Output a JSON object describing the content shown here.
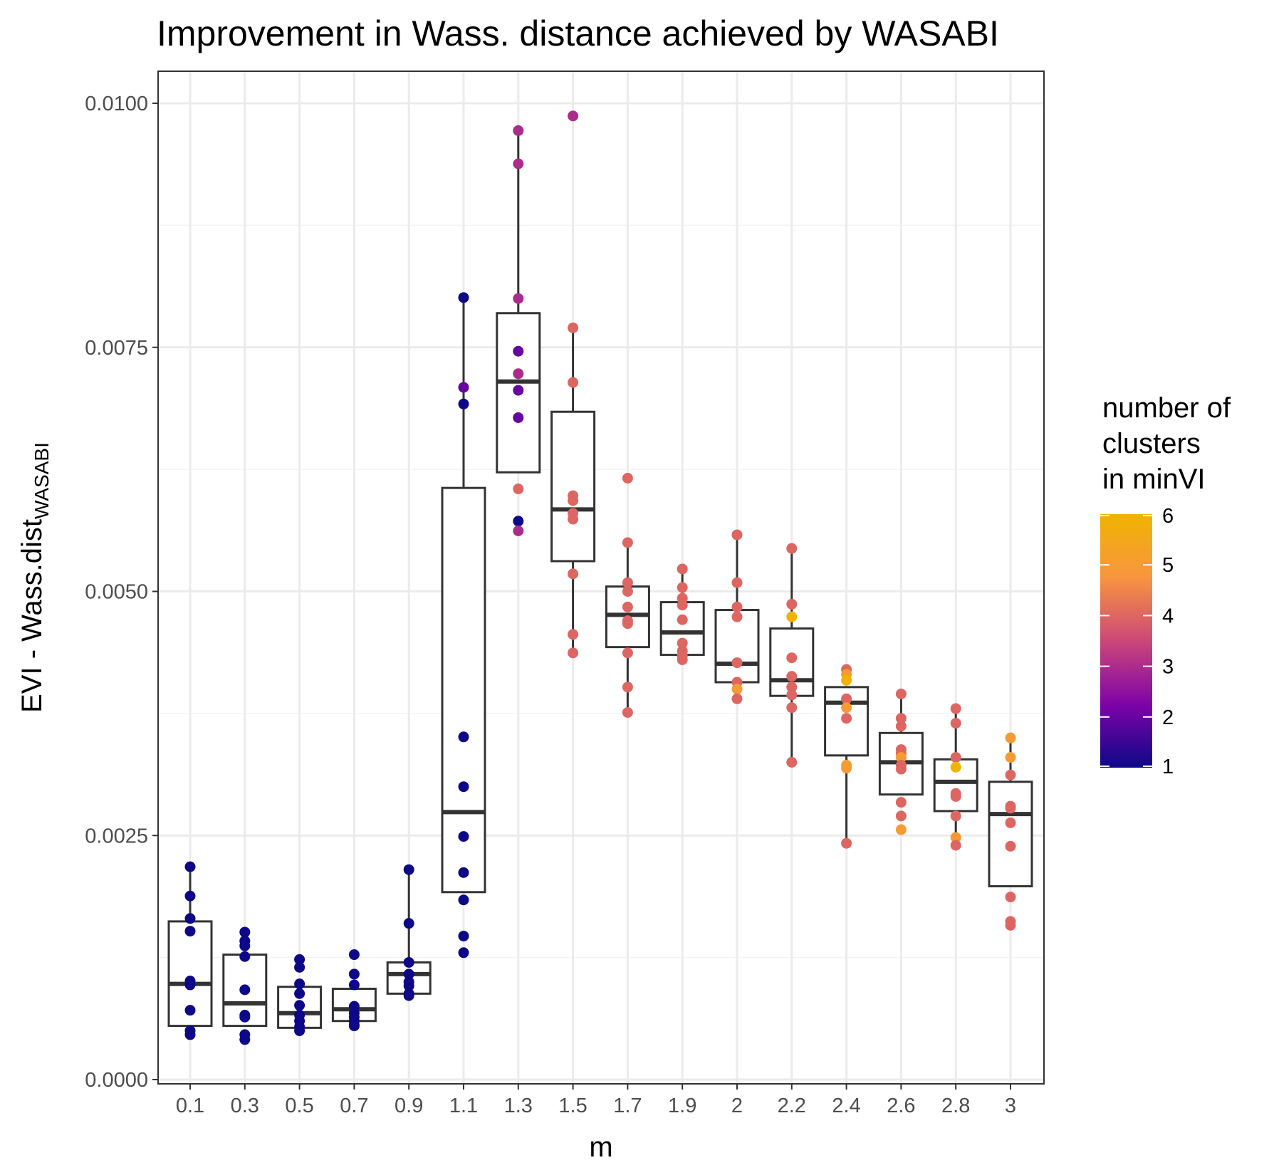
{
  "chart_data": {
    "type": "boxplot",
    "title": "Improvement in Wass. distance achieved by WASABI",
    "xlabel": "m",
    "ylabel_main": "EVI - Wass.dist",
    "ylabel_sub": "WASABI",
    "ylim": [
      0.0,
      0.01
    ],
    "y_ticks": [
      "0.0000",
      "0.0025",
      "0.0050",
      "0.0075",
      "0.0100"
    ],
    "grid": true,
    "categories": [
      "0.1",
      "0.3",
      "0.5",
      "0.7",
      "0.9",
      "1.1",
      "1.3",
      "1.5",
      "1.7",
      "1.9",
      "2",
      "2.2",
      "2.4",
      "2.6",
      "2.8",
      "3"
    ],
    "boxes": [
      {
        "q1": 0.00055,
        "median": 0.00098,
        "q3": 0.00162,
        "whisker_low": 0.00055,
        "whisker_high": 0.00218
      },
      {
        "q1": 0.00055,
        "median": 0.00078,
        "q3": 0.00128,
        "whisker_low": 0.00055,
        "whisker_high": 0.00128
      },
      {
        "q1": 0.00053,
        "median": 0.00068,
        "q3": 0.00095,
        "whisker_low": 0.00053,
        "whisker_high": 0.00095
      },
      {
        "q1": 0.0006,
        "median": 0.00072,
        "q3": 0.00093,
        "whisker_low": 0.0006,
        "whisker_high": 0.00093
      },
      {
        "q1": 0.00088,
        "median": 0.00108,
        "q3": 0.0012,
        "whisker_low": 0.00088,
        "whisker_high": 0.00215
      },
      {
        "q1": 0.00192,
        "median": 0.00274,
        "q3": 0.00606,
        "whisker_low": 0.00192,
        "whisker_high": 0.00801
      },
      {
        "q1": 0.00622,
        "median": 0.00715,
        "q3": 0.00785,
        "whisker_low": 0.00622,
        "whisker_high": 0.00972
      },
      {
        "q1": 0.00531,
        "median": 0.00584,
        "q3": 0.00684,
        "whisker_low": 0.00437,
        "whisker_high": 0.0077
      },
      {
        "q1": 0.00443,
        "median": 0.00476,
        "q3": 0.00505,
        "whisker_low": 0.00376,
        "whisker_high": 0.0055
      },
      {
        "q1": 0.00435,
        "median": 0.00458,
        "q3": 0.00489,
        "whisker_low": 0.00435,
        "whisker_high": 0.00523
      },
      {
        "q1": 0.00407,
        "median": 0.00426,
        "q3": 0.00481,
        "whisker_low": 0.00407,
        "whisker_high": 0.00558
      },
      {
        "q1": 0.00393,
        "median": 0.00409,
        "q3": 0.00462,
        "whisker_low": 0.00325,
        "whisker_high": 0.00544
      },
      {
        "q1": 0.00332,
        "median": 0.00386,
        "q3": 0.00402,
        "whisker_low": 0.00242,
        "whisker_high": 0.00402
      },
      {
        "q1": 0.00292,
        "median": 0.00325,
        "q3": 0.00355,
        "whisker_low": 0.00292,
        "whisker_high": 0.00395
      },
      {
        "q1": 0.00275,
        "median": 0.00305,
        "q3": 0.00328,
        "whisker_low": 0.0024,
        "whisker_high": 0.0038
      },
      {
        "q1": 0.00198,
        "median": 0.00272,
        "q3": 0.00305,
        "whisker_low": 0.00198,
        "whisker_high": 0.0035
      }
    ],
    "points": [
      [
        [
          0.00218,
          1
        ],
        [
          0.00188,
          1
        ],
        [
          0.00165,
          1
        ],
        [
          0.00152,
          1
        ],
        [
          0.00101,
          1
        ],
        [
          0.00097,
          1
        ],
        [
          0.00071,
          1
        ],
        [
          0.0005,
          1
        ],
        [
          0.00046,
          1
        ]
      ],
      [
        [
          0.00151,
          1
        ],
        [
          0.00142,
          1
        ],
        [
          0.00137,
          1
        ],
        [
          0.00126,
          1
        ],
        [
          0.00092,
          1
        ],
        [
          0.00066,
          1
        ],
        [
          0.00064,
          1
        ],
        [
          0.00046,
          1
        ],
        [
          0.00041,
          1
        ]
      ],
      [
        [
          0.00123,
          1
        ],
        [
          0.00115,
          1
        ],
        [
          0.00098,
          1
        ],
        [
          0.00088,
          1
        ],
        [
          0.00076,
          1
        ],
        [
          0.00066,
          1
        ],
        [
          0.0006,
          1
        ],
        [
          0.00054,
          1
        ],
        [
          0.0005,
          1
        ]
      ],
      [
        [
          0.00128,
          1
        ],
        [
          0.00108,
          1
        ],
        [
          0.00097,
          1
        ],
        [
          0.00075,
          1
        ],
        [
          0.00068,
          1
        ],
        [
          0.00064,
          1
        ],
        [
          0.0006,
          1
        ],
        [
          0.00056,
          1
        ],
        [
          0.00055,
          1
        ]
      ],
      [
        [
          0.00215,
          1
        ],
        [
          0.0016,
          1
        ],
        [
          0.0012,
          1
        ],
        [
          0.00108,
          1
        ],
        [
          0.001,
          1
        ],
        [
          0.00096,
          1
        ],
        [
          0.00088,
          1
        ],
        [
          0.00086,
          1
        ]
      ],
      [
        [
          0.00801,
          1
        ],
        [
          0.00709,
          2
        ],
        [
          0.00692,
          1
        ],
        [
          0.00351,
          1
        ],
        [
          0.003,
          1
        ],
        [
          0.00249,
          1
        ],
        [
          0.00212,
          1
        ],
        [
          0.00184,
          1
        ],
        [
          0.00147,
          1
        ],
        [
          0.0013,
          1
        ]
      ],
      [
        [
          0.00972,
          3
        ],
        [
          0.00938,
          3
        ],
        [
          0.008,
          3
        ],
        [
          0.00746,
          2
        ],
        [
          0.00723,
          3
        ],
        [
          0.00706,
          2
        ],
        [
          0.00678,
          2
        ],
        [
          0.00605,
          4
        ],
        [
          0.00572,
          1
        ],
        [
          0.00562,
          3
        ]
      ],
      [
        [
          0.00987,
          3
        ],
        [
          0.0077,
          4
        ],
        [
          0.00714,
          4
        ],
        [
          0.00598,
          4
        ],
        [
          0.00593,
          4
        ],
        [
          0.0058,
          4
        ],
        [
          0.00574,
          4
        ],
        [
          0.00518,
          4
        ],
        [
          0.00456,
          4
        ],
        [
          0.00437,
          4
        ]
      ],
      [
        [
          0.00616,
          4
        ],
        [
          0.0055,
          4
        ],
        [
          0.00509,
          4
        ],
        [
          0.005,
          4
        ],
        [
          0.00484,
          4
        ],
        [
          0.0047,
          4
        ],
        [
          0.00467,
          4
        ],
        [
          0.00437,
          4
        ],
        [
          0.00402,
          4
        ],
        [
          0.00376,
          4
        ]
      ],
      [
        [
          0.00523,
          4
        ],
        [
          0.00504,
          4
        ],
        [
          0.00493,
          4
        ],
        [
          0.00486,
          4
        ],
        [
          0.00471,
          4
        ],
        [
          0.00447,
          4
        ],
        [
          0.00439,
          4
        ],
        [
          0.00434,
          4
        ],
        [
          0.0043,
          4
        ]
      ],
      [
        [
          0.00558,
          4
        ],
        [
          0.00509,
          4
        ],
        [
          0.00484,
          4
        ],
        [
          0.00474,
          4
        ],
        [
          0.00427,
          4
        ],
        [
          0.00407,
          4
        ],
        [
          0.004,
          5
        ],
        [
          0.0039,
          4
        ]
      ],
      [
        [
          0.00544,
          4
        ],
        [
          0.00487,
          4
        ],
        [
          0.00474,
          6
        ],
        [
          0.00432,
          4
        ],
        [
          0.00413,
          4
        ],
        [
          0.00402,
          4
        ],
        [
          0.00394,
          4
        ],
        [
          0.00381,
          4
        ],
        [
          0.00325,
          4
        ]
      ],
      [
        [
          0.0042,
          4
        ],
        [
          0.00415,
          5
        ],
        [
          0.00409,
          6
        ],
        [
          0.0039,
          4
        ],
        [
          0.00381,
          5
        ],
        [
          0.0037,
          4
        ],
        [
          0.00322,
          5
        ],
        [
          0.00319,
          5
        ],
        [
          0.00242,
          4
        ]
      ],
      [
        [
          0.00395,
          4
        ],
        [
          0.0037,
          4
        ],
        [
          0.00362,
          4
        ],
        [
          0.00338,
          4
        ],
        [
          0.00334,
          4
        ],
        [
          0.0033,
          5
        ],
        [
          0.00322,
          4
        ],
        [
          0.00318,
          4
        ],
        [
          0.00284,
          4
        ],
        [
          0.0027,
          4
        ],
        [
          0.00256,
          5
        ]
      ],
      [
        [
          0.0038,
          4
        ],
        [
          0.00365,
          4
        ],
        [
          0.0033,
          4
        ],
        [
          0.0032,
          6
        ],
        [
          0.00293,
          4
        ],
        [
          0.0029,
          4
        ],
        [
          0.0027,
          4
        ],
        [
          0.00248,
          5
        ],
        [
          0.0024,
          4
        ]
      ],
      [
        [
          0.0035,
          5
        ],
        [
          0.0033,
          5
        ],
        [
          0.00312,
          4
        ],
        [
          0.0028,
          4
        ],
        [
          0.00278,
          4
        ],
        [
          0.00263,
          4
        ],
        [
          0.00239,
          4
        ],
        [
          0.00187,
          4
        ],
        [
          0.00162,
          4
        ],
        [
          0.00158,
          4
        ]
      ]
    ],
    "legend": {
      "title_lines": [
        "number of",
        "clusters",
        "in minVI"
      ],
      "ticks": [
        "1",
        "2",
        "3",
        "4",
        "5",
        "6"
      ],
      "min": 1,
      "max": 6,
      "position": "right",
      "palette": [
        "#0d0887",
        "#7e03a8",
        "#cc4778",
        "#f89540",
        "#f0b400"
      ]
    },
    "colors": {
      "background": "#ffffff",
      "panel_border": "#333333",
      "grid_major": "#ebebeb",
      "grid_minor": "#f3f3f3",
      "box_stroke": "#333333"
    }
  }
}
